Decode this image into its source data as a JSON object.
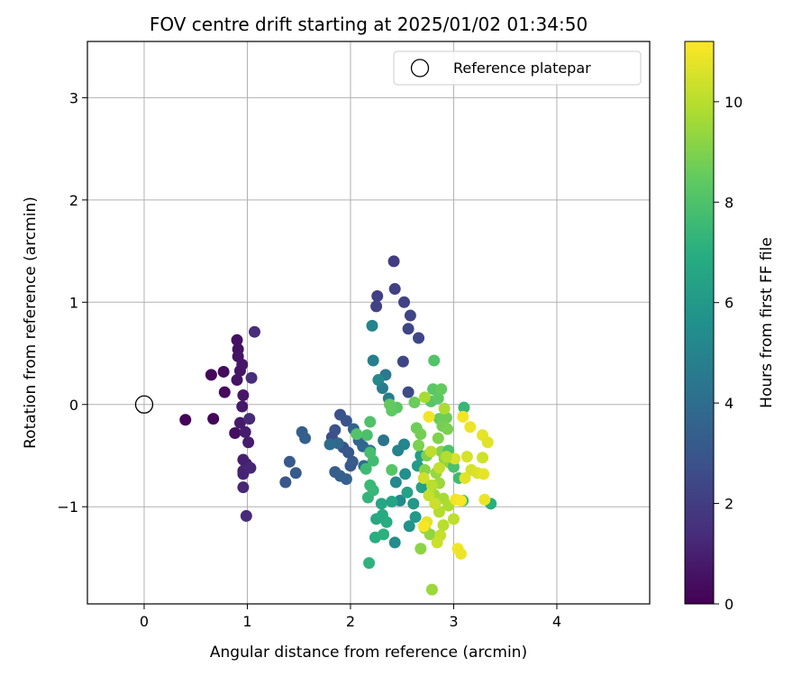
{
  "chart_data": {
    "type": "scatter",
    "title": "FOV centre drift starting at 2025/01/02 01:34:50",
    "xlabel": "Angular distance from reference (arcmin)",
    "ylabel": "Rotation from reference (arcmin)",
    "xlim": [
      -0.55,
      4.9
    ],
    "ylim": [
      -1.95,
      3.55
    ],
    "xticks": [
      0,
      1,
      2,
      3,
      4
    ],
    "yticks": [
      -1,
      0,
      1,
      2,
      3
    ],
    "grid": true,
    "legend": {
      "placement": "top-right",
      "entries": [
        "Reference platepar"
      ]
    },
    "reference_point": {
      "x": 0.0,
      "y": 0.0
    },
    "colorbar": {
      "label": "Hours from first FF file",
      "range": [
        0,
        11.2
      ],
      "ticks": [
        0,
        2,
        4,
        6,
        8,
        10
      ],
      "colormap": "viridis"
    },
    "points": [
      {
        "x": 0.4,
        "y": -0.15,
        "h": 0.1
      },
      {
        "x": 0.67,
        "y": -0.14,
        "h": 0.2
      },
      {
        "x": 0.65,
        "y": 0.29,
        "h": 0.2
      },
      {
        "x": 0.77,
        "y": 0.32,
        "h": 0.3
      },
      {
        "x": 0.78,
        "y": 0.12,
        "h": 0.3
      },
      {
        "x": 0.88,
        "y": -0.28,
        "h": 0.4
      },
      {
        "x": 0.9,
        "y": 0.63,
        "h": 0.5
      },
      {
        "x": 0.91,
        "y": 0.54,
        "h": 0.5
      },
      {
        "x": 0.91,
        "y": 0.47,
        "h": 0.6
      },
      {
        "x": 0.9,
        "y": 0.24,
        "h": 0.6
      },
      {
        "x": 0.93,
        "y": 0.33,
        "h": 0.6
      },
      {
        "x": 0.95,
        "y": 0.39,
        "h": 0.7
      },
      {
        "x": 0.96,
        "y": 0.09,
        "h": 0.7
      },
      {
        "x": 0.95,
        "y": -0.02,
        "h": 0.8
      },
      {
        "x": 0.93,
        "y": -0.18,
        "h": 0.8
      },
      {
        "x": 0.98,
        "y": -0.27,
        "h": 0.9
      },
      {
        "x": 1.01,
        "y": -0.37,
        "h": 0.9
      },
      {
        "x": 0.96,
        "y": -0.54,
        "h": 1.0
      },
      {
        "x": 0.99,
        "y": -0.58,
        "h": 1.0
      },
      {
        "x": 0.96,
        "y": -0.65,
        "h": 1.1
      },
      {
        "x": 0.96,
        "y": -0.68,
        "h": 1.1
      },
      {
        "x": 1.03,
        "y": -0.62,
        "h": 1.2
      },
      {
        "x": 0.96,
        "y": -0.81,
        "h": 1.2
      },
      {
        "x": 0.99,
        "y": -1.09,
        "h": 1.3
      },
      {
        "x": 1.02,
        "y": -0.14,
        "h": 1.3
      },
      {
        "x": 1.04,
        "y": 0.26,
        "h": 1.4
      },
      {
        "x": 1.07,
        "y": 0.71,
        "h": 1.4
      },
      {
        "x": 2.42,
        "y": 1.4,
        "h": 2.0
      },
      {
        "x": 2.43,
        "y": 1.13,
        "h": 2.1
      },
      {
        "x": 2.26,
        "y": 1.06,
        "h": 2.1
      },
      {
        "x": 2.25,
        "y": 0.96,
        "h": 2.2
      },
      {
        "x": 2.52,
        "y": 1.0,
        "h": 2.2
      },
      {
        "x": 2.58,
        "y": 0.87,
        "h": 2.3
      },
      {
        "x": 2.56,
        "y": 0.74,
        "h": 2.3
      },
      {
        "x": 2.66,
        "y": 0.65,
        "h": 2.4
      },
      {
        "x": 2.51,
        "y": 0.42,
        "h": 2.4
      },
      {
        "x": 2.56,
        "y": 0.12,
        "h": 2.5
      },
      {
        "x": 1.37,
        "y": -0.76,
        "h": 3.0
      },
      {
        "x": 1.41,
        "y": -0.56,
        "h": 3.1
      },
      {
        "x": 1.47,
        "y": -0.67,
        "h": 3.2
      },
      {
        "x": 1.53,
        "y": -0.27,
        "h": 3.3
      },
      {
        "x": 1.56,
        "y": -0.33,
        "h": 3.4
      },
      {
        "x": 1.82,
        "y": -0.32,
        "h": 2.7
      },
      {
        "x": 1.85,
        "y": -0.25,
        "h": 2.8
      },
      {
        "x": 1.9,
        "y": -0.1,
        "h": 2.8
      },
      {
        "x": 1.93,
        "y": -0.42,
        "h": 2.9
      },
      {
        "x": 1.96,
        "y": -0.16,
        "h": 2.9
      },
      {
        "x": 1.98,
        "y": -0.47,
        "h": 3.0
      },
      {
        "x": 2.0,
        "y": -0.6,
        "h": 3.1
      },
      {
        "x": 2.02,
        "y": -0.56,
        "h": 3.2
      },
      {
        "x": 1.85,
        "y": -0.66,
        "h": 3.3
      },
      {
        "x": 1.9,
        "y": -0.7,
        "h": 3.4
      },
      {
        "x": 1.96,
        "y": -0.73,
        "h": 3.5
      },
      {
        "x": 2.03,
        "y": -0.24,
        "h": 3.5
      },
      {
        "x": 2.08,
        "y": -0.35,
        "h": 3.6
      },
      {
        "x": 2.12,
        "y": -0.41,
        "h": 3.7
      },
      {
        "x": 1.88,
        "y": -0.38,
        "h": 3.8
      },
      {
        "x": 1.8,
        "y": -0.39,
        "h": 3.9
      },
      {
        "x": 2.13,
        "y": -0.6,
        "h": 4.0
      },
      {
        "x": 2.19,
        "y": -0.45,
        "h": 4.1
      },
      {
        "x": 2.32,
        "y": -0.35,
        "h": 4.3
      },
      {
        "x": 2.34,
        "y": 0.29,
        "h": 4.5
      },
      {
        "x": 2.31,
        "y": 0.16,
        "h": 4.6
      },
      {
        "x": 2.37,
        "y": 0.06,
        "h": 4.7
      },
      {
        "x": 2.22,
        "y": 0.43,
        "h": 4.8
      },
      {
        "x": 2.21,
        "y": 0.77,
        "h": 5.0
      },
      {
        "x": 2.27,
        "y": 0.24,
        "h": 5.2
      },
      {
        "x": 2.46,
        "y": -0.45,
        "h": 4.9
      },
      {
        "x": 2.52,
        "y": -0.39,
        "h": 5.1
      },
      {
        "x": 2.44,
        "y": -0.76,
        "h": 5.2
      },
      {
        "x": 2.48,
        "y": -0.94,
        "h": 5.3
      },
      {
        "x": 2.43,
        "y": -1.35,
        "h": 5.4
      },
      {
        "x": 2.53,
        "y": -0.68,
        "h": 5.5
      },
      {
        "x": 2.57,
        "y": -1.19,
        "h": 5.7
      },
      {
        "x": 2.61,
        "y": -0.97,
        "h": 5.9
      },
      {
        "x": 2.63,
        "y": -1.1,
        "h": 6.0
      },
      {
        "x": 2.65,
        "y": -0.6,
        "h": 6.1
      },
      {
        "x": 2.68,
        "y": -0.5,
        "h": 6.2
      },
      {
        "x": 2.69,
        "y": -0.81,
        "h": 6.3
      },
      {
        "x": 2.55,
        "y": -0.86,
        "h": 6.4
      },
      {
        "x": 2.4,
        "y": -0.95,
        "h": 6.5
      },
      {
        "x": 2.3,
        "y": -0.97,
        "h": 6.6
      },
      {
        "x": 2.25,
        "y": -1.12,
        "h": 6.7
      },
      {
        "x": 2.31,
        "y": -1.08,
        "h": 6.8
      },
      {
        "x": 2.35,
        "y": -1.15,
        "h": 6.9
      },
      {
        "x": 2.24,
        "y": -1.3,
        "h": 7.0
      },
      {
        "x": 2.32,
        "y": -1.27,
        "h": 7.1
      },
      {
        "x": 2.18,
        "y": -1.55,
        "h": 7.2
      },
      {
        "x": 2.17,
        "y": -0.91,
        "h": 7.3
      },
      {
        "x": 2.22,
        "y": -0.84,
        "h": 7.4
      },
      {
        "x": 2.19,
        "y": -0.79,
        "h": 7.5
      },
      {
        "x": 2.15,
        "y": -0.63,
        "h": 7.6
      },
      {
        "x": 2.22,
        "y": -0.55,
        "h": 7.7
      },
      {
        "x": 2.19,
        "y": -0.47,
        "h": 7.8
      },
      {
        "x": 2.16,
        "y": -0.3,
        "h": 7.9
      },
      {
        "x": 2.19,
        "y": -0.17,
        "h": 8.0
      },
      {
        "x": 2.06,
        "y": -0.29,
        "h": 8.1
      },
      {
        "x": 2.4,
        "y": -0.64,
        "h": 8.2
      },
      {
        "x": 2.45,
        "y": -0.03,
        "h": 8.3
      },
      {
        "x": 2.4,
        "y": -0.06,
        "h": 8.4
      },
      {
        "x": 2.38,
        "y": 0.0,
        "h": 8.5
      },
      {
        "x": 2.62,
        "y": 0.02,
        "h": 8.6
      },
      {
        "x": 2.64,
        "y": -0.23,
        "h": 8.7
      },
      {
        "x": 2.68,
        "y": -0.29,
        "h": 8.8
      },
      {
        "x": 2.66,
        "y": -0.4,
        "h": 8.9
      },
      {
        "x": 2.74,
        "y": -0.5,
        "h": 9.0
      },
      {
        "x": 2.72,
        "y": -0.64,
        "h": 9.1
      },
      {
        "x": 2.68,
        "y": -1.41,
        "h": 9.2
      },
      {
        "x": 2.77,
        "y": -1.27,
        "h": 9.3
      },
      {
        "x": 2.72,
        "y": -1.21,
        "h": 9.4
      },
      {
        "x": 2.79,
        "y": -1.81,
        "h": 9.5
      },
      {
        "x": 2.81,
        "y": 0.43,
        "h": 8.1
      },
      {
        "x": 2.78,
        "y": 0.03,
        "h": 8.2
      },
      {
        "x": 2.8,
        "y": 0.15,
        "h": 8.3
      },
      {
        "x": 2.85,
        "y": 0.06,
        "h": 8.4
      },
      {
        "x": 2.88,
        "y": 0.15,
        "h": 8.5
      },
      {
        "x": 2.86,
        "y": -0.14,
        "h": 8.6
      },
      {
        "x": 2.93,
        "y": -0.13,
        "h": 8.7
      },
      {
        "x": 2.89,
        "y": -0.21,
        "h": 8.8
      },
      {
        "x": 2.94,
        "y": -0.24,
        "h": 8.9
      },
      {
        "x": 2.85,
        "y": -0.33,
        "h": 9.0
      },
      {
        "x": 2.88,
        "y": -0.46,
        "h": 9.1
      },
      {
        "x": 2.91,
        "y": -0.53,
        "h": 9.2
      },
      {
        "x": 2.96,
        "y": -0.57,
        "h": 9.3
      },
      {
        "x": 2.83,
        "y": -0.67,
        "h": 9.4
      },
      {
        "x": 2.86,
        "y": -0.77,
        "h": 9.5
      },
      {
        "x": 2.81,
        "y": -0.88,
        "h": 9.6
      },
      {
        "x": 2.9,
        "y": -0.92,
        "h": 9.7
      },
      {
        "x": 2.95,
        "y": -0.99,
        "h": 9.8
      },
      {
        "x": 2.86,
        "y": -1.05,
        "h": 9.9
      },
      {
        "x": 2.9,
        "y": -1.18,
        "h": 10.0
      },
      {
        "x": 3.0,
        "y": -1.12,
        "h": 10.1
      },
      {
        "x": 2.87,
        "y": -1.28,
        "h": 10.2
      },
      {
        "x": 2.84,
        "y": -1.35,
        "h": 10.3
      },
      {
        "x": 3.1,
        "y": -0.03,
        "h": 7.4
      },
      {
        "x": 3.05,
        "y": -0.72,
        "h": 7.6
      },
      {
        "x": 3.09,
        "y": -0.94,
        "h": 7.8
      },
      {
        "x": 3.36,
        "y": -0.97,
        "h": 7.0
      },
      {
        "x": 3.0,
        "y": -0.61,
        "h": 7.9
      },
      {
        "x": 2.95,
        "y": -0.45,
        "h": 8.0
      },
      {
        "x": 2.76,
        "y": -0.12,
        "h": 11.0
      },
      {
        "x": 3.01,
        "y": -0.53,
        "h": 10.6
      },
      {
        "x": 3.09,
        "y": -0.12,
        "h": 11.0
      },
      {
        "x": 3.16,
        "y": -0.22,
        "h": 10.9
      },
      {
        "x": 3.28,
        "y": -0.3,
        "h": 10.8
      },
      {
        "x": 3.33,
        "y": -0.37,
        "h": 10.7
      },
      {
        "x": 3.13,
        "y": -0.51,
        "h": 10.5
      },
      {
        "x": 3.28,
        "y": -0.52,
        "h": 10.4
      },
      {
        "x": 3.17,
        "y": -0.64,
        "h": 10.5
      },
      {
        "x": 3.23,
        "y": -0.67,
        "h": 10.6
      },
      {
        "x": 3.11,
        "y": -0.72,
        "h": 10.7
      },
      {
        "x": 3.29,
        "y": -0.68,
        "h": 10.8
      },
      {
        "x": 3.3,
        "y": -0.93,
        "h": 10.9
      },
      {
        "x": 3.02,
        "y": -0.93,
        "h": 11.0
      },
      {
        "x": 3.07,
        "y": -0.94,
        "h": 11.1
      },
      {
        "x": 3.04,
        "y": -1.41,
        "h": 11.0
      },
      {
        "x": 3.07,
        "y": -1.46,
        "h": 10.9
      },
      {
        "x": 2.74,
        "y": -1.15,
        "h": 10.8
      },
      {
        "x": 2.71,
        "y": -1.19,
        "h": 11.1
      },
      {
        "x": 2.71,
        "y": -0.72,
        "h": 10.4
      },
      {
        "x": 2.76,
        "y": -0.89,
        "h": 10.2
      },
      {
        "x": 2.82,
        "y": -0.97,
        "h": 10.3
      },
      {
        "x": 2.78,
        "y": -0.46,
        "h": 10.1
      },
      {
        "x": 2.79,
        "y": -0.79,
        "h": 10.0
      },
      {
        "x": 2.86,
        "y": -0.62,
        "h": 10.2
      },
      {
        "x": 2.93,
        "y": -0.51,
        "h": 9.9
      },
      {
        "x": 2.91,
        "y": -0.04,
        "h": 9.8
      },
      {
        "x": 2.72,
        "y": 0.07,
        "h": 9.7
      }
    ]
  }
}
